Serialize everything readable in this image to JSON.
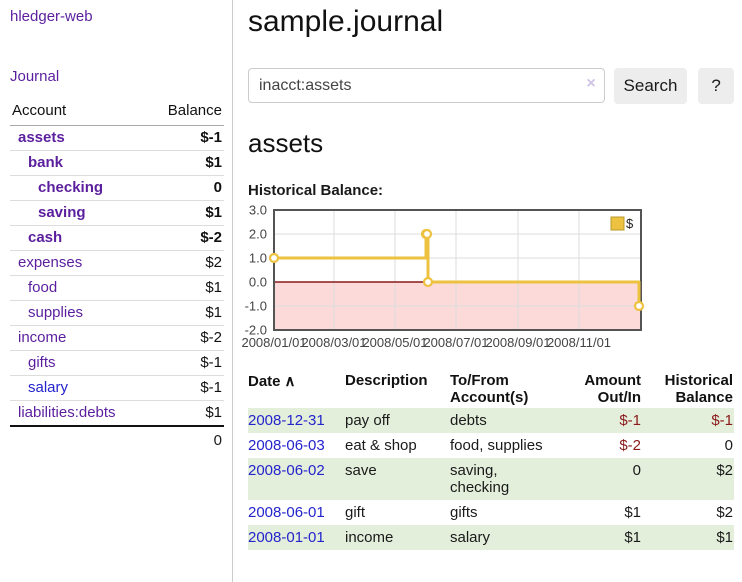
{
  "app": {
    "title": "hledger-web",
    "nav_journal": "Journal"
  },
  "sidebar": {
    "columns": {
      "account": "Account",
      "balance": "Balance"
    },
    "accounts": [
      {
        "name": "assets",
        "indent": 1,
        "bold": true,
        "link": "purple",
        "balance": "$-1",
        "balance_style": "neg-strong"
      },
      {
        "name": "bank",
        "indent": 2,
        "bold": true,
        "link": "purple",
        "balance": "$1",
        "balance_style": ""
      },
      {
        "name": "checking",
        "indent": 3,
        "bold": true,
        "link": "purple",
        "balance": "0",
        "balance_style": ""
      },
      {
        "name": "saving",
        "indent": 3,
        "bold": true,
        "link": "purple",
        "balance": "$1",
        "balance_style": ""
      },
      {
        "name": "cash",
        "indent": 2,
        "bold": true,
        "link": "purple",
        "balance": "$-2",
        "balance_style": "neg-strong"
      },
      {
        "name": "expenses",
        "indent": 1,
        "bold": false,
        "link": "purple",
        "balance": "$2",
        "balance_style": ""
      },
      {
        "name": "food",
        "indent": 2,
        "bold": false,
        "link": "purple",
        "balance": "$1",
        "balance_style": ""
      },
      {
        "name": "supplies",
        "indent": 2,
        "bold": false,
        "link": "purple",
        "balance": "$1",
        "balance_style": ""
      },
      {
        "name": "income",
        "indent": 1,
        "bold": false,
        "link": "purple",
        "balance": "$-2",
        "balance_style": "neg-soft"
      },
      {
        "name": "gifts",
        "indent": 2,
        "bold": false,
        "link": "purple",
        "balance": "$-1",
        "balance_style": "neg-soft"
      },
      {
        "name": "salary",
        "indent": 2,
        "bold": false,
        "link": "blue",
        "balance": "$-1",
        "balance_style": "neg-soft"
      },
      {
        "name": "liabilities:debts",
        "indent": 1,
        "bold": false,
        "link": "purple",
        "balance": "$1",
        "balance_style": ""
      }
    ],
    "total": "0"
  },
  "header": {
    "title": "sample.journal"
  },
  "search": {
    "value": "inacct:assets",
    "clear_icon": "×",
    "button_label": "Search",
    "help_label": "?"
  },
  "page": {
    "heading": "assets",
    "chart_label": "Historical Balance:"
  },
  "chart_data": {
    "type": "line",
    "title": "Historical Balance",
    "step": true,
    "series": [
      {
        "name": "$",
        "color": "#EDC240",
        "points": [
          {
            "date": "2008-01-01",
            "value": 1
          },
          {
            "date": "2008-06-01",
            "value": 2
          },
          {
            "date": "2008-06-02",
            "value": 2
          },
          {
            "date": "2008-06-03",
            "value": 0
          },
          {
            "date": "2008-12-31",
            "value": -1
          }
        ]
      }
    ],
    "ylim": [
      -2,
      3
    ],
    "yticks": [
      "3.0",
      "2.0",
      "1.0",
      "0.0",
      "-1.0",
      "-2.0"
    ],
    "xticks": [
      "2008/01/01",
      "2008/03/01",
      "2008/05/01",
      "2008/07/01",
      "2008/09/01",
      "2008/11/01"
    ],
    "legend": {
      "label": "$",
      "position": "top-right"
    },
    "grid": true,
    "negative_region_color": "#fcdada",
    "zero_line_color": "#8b1a1a",
    "border_color": "#545454"
  },
  "register": {
    "columns": [
      "Date",
      "Description",
      "To/From Account(s)",
      "Amount Out/In",
      "Historical Balance"
    ],
    "sort_icon": "∧",
    "rows": [
      {
        "date": "2008-12-31",
        "description": "pay off",
        "accounts": "debts",
        "amount": "$-1",
        "amount_style": "neg",
        "balance": "$-1",
        "balance_style": "neg"
      },
      {
        "date": "2008-06-03",
        "description": "eat & shop",
        "accounts": "food, supplies",
        "amount": "$-2",
        "amount_style": "neg",
        "balance": "0",
        "balance_style": ""
      },
      {
        "date": "2008-06-02",
        "description": "save",
        "accounts": "saving, checking",
        "amount": "0",
        "amount_style": "",
        "balance": "$2",
        "balance_style": ""
      },
      {
        "date": "2008-06-01",
        "description": "gift",
        "accounts": "gifts",
        "amount": "$1",
        "amount_style": "",
        "balance": "$2",
        "balance_style": ""
      },
      {
        "date": "2008-01-01",
        "description": "income",
        "accounts": "salary",
        "amount": "$1",
        "amount_style": "",
        "balance": "$1",
        "balance_style": ""
      }
    ]
  }
}
